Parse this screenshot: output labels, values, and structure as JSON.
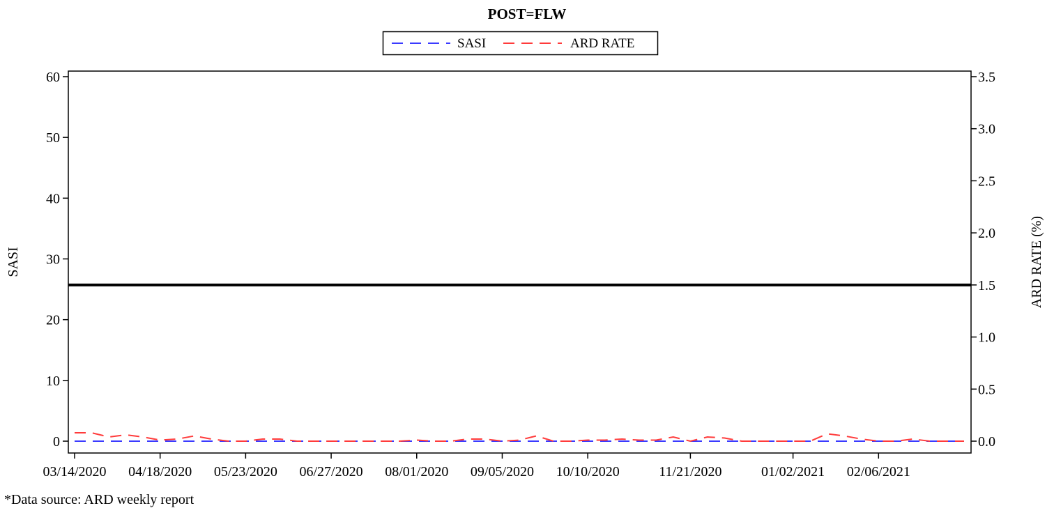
{
  "chart_data": {
    "type": "line",
    "title": "POST=FLW",
    "xlabel": "",
    "ylabel": "SASI",
    "y2label": "ARD RATE (%)",
    "ylim": [
      0,
      60
    ],
    "y2lim": [
      0,
      3.5
    ],
    "yticks": [
      0,
      10,
      20,
      30,
      40,
      50,
      60
    ],
    "y2ticks": [
      "0.0",
      "0.5",
      "1.0",
      "1.5",
      "2.0",
      "2.5",
      "3.0",
      "3.5"
    ],
    "xlim": [
      "2020-03-14",
      "2021-03-13"
    ],
    "xticks": [
      "03/14/2020",
      "04/18/2020",
      "05/23/2020",
      "06/27/2020",
      "08/01/2020",
      "09/05/2020",
      "10/10/2020",
      "11/21/2020",
      "01/02/2021",
      "02/06/2021"
    ],
    "reference_line": {
      "axis": "y2",
      "value": 1.5,
      "color": "#000000"
    },
    "legend_position": "top",
    "grid": false,
    "series": [
      {
        "name": "SASI",
        "axis": "y",
        "color": "#3b3bff",
        "style": "dashed",
        "x": [
          "2020-03-14",
          "2021-03-13"
        ],
        "values": [
          0,
          0
        ]
      },
      {
        "name": "ARD RATE",
        "axis": "y2",
        "color": "#ff3b3b",
        "style": "dashed",
        "x": [
          "2020-03-14",
          "2020-03-21",
          "2020-03-28",
          "2020-04-04",
          "2020-04-11",
          "2020-04-18",
          "2020-04-25",
          "2020-05-02",
          "2020-05-09",
          "2020-05-16",
          "2020-05-23",
          "2020-05-30",
          "2020-06-06",
          "2020-06-13",
          "2020-06-20",
          "2020-06-27",
          "2020-07-04",
          "2020-07-11",
          "2020-07-18",
          "2020-07-25",
          "2020-08-01",
          "2020-08-08",
          "2020-08-15",
          "2020-08-22",
          "2020-08-29",
          "2020-09-05",
          "2020-09-12",
          "2020-09-19",
          "2020-09-26",
          "2020-10-03",
          "2020-10-10",
          "2020-10-17",
          "2020-10-24",
          "2020-10-31",
          "2020-11-07",
          "2020-11-14",
          "2020-11-21",
          "2020-11-28",
          "2020-12-05",
          "2020-12-12",
          "2020-12-19",
          "2020-12-26",
          "2021-01-02",
          "2021-01-09",
          "2021-01-16",
          "2021-01-23",
          "2021-01-30",
          "2021-02-06",
          "2021-02-13",
          "2021-02-20",
          "2021-02-27",
          "2021-03-06",
          "2021-03-13"
        ],
        "values": [
          0.08,
          0.08,
          0.04,
          0.06,
          0.04,
          0.01,
          0.02,
          0.05,
          0.02,
          0.0,
          0.0,
          0.02,
          0.02,
          0.0,
          0.0,
          0.0,
          0.0,
          0.0,
          0.0,
          0.0,
          0.01,
          0.0,
          0.0,
          0.02,
          0.02,
          0.0,
          0.01,
          0.05,
          0.0,
          0.0,
          0.01,
          0.01,
          0.02,
          0.01,
          0.01,
          0.04,
          0.0,
          0.04,
          0.03,
          0.0,
          0.0,
          0.0,
          0.0,
          0.0,
          0.07,
          0.05,
          0.02,
          0.0,
          0.0,
          0.02,
          0.0,
          0.0,
          0.0
        ]
      }
    ]
  },
  "footnote": "*Data source: ARD weekly report"
}
